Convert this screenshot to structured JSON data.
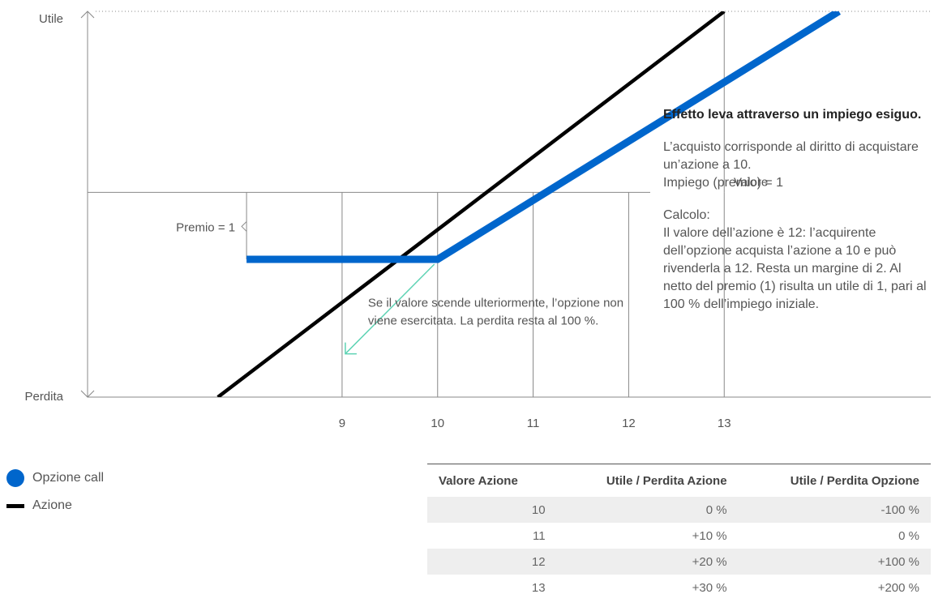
{
  "chart_data": {
    "type": "line",
    "title": "",
    "y_top_label": "Utile",
    "y_bottom_label": "Perdita",
    "x_axis_label": "Valore",
    "x_ticks": [
      "9",
      "10",
      "11",
      "12",
      "13"
    ],
    "xlim": [
      6.2,
      14.5
    ],
    "ylim": [
      -2.6,
      2.3
    ],
    "grid": "vertical lines at ticks",
    "series": [
      {
        "name": "Azione",
        "color": "#000000",
        "points": [
          [
            7.7,
            -2.6
          ],
          [
            13.0,
            2.3
          ]
        ]
      },
      {
        "name": "Opzione call",
        "color": "#0066cc",
        "points": [
          [
            8.0,
            -0.85
          ],
          [
            10.0,
            -0.85
          ],
          [
            14.2,
            2.3
          ]
        ]
      }
    ],
    "annotations": {
      "premium_label": "Premio = 1",
      "note": "Se il valore scende ulteriormente, l’opzione non viene esercitata. La perdita resta al 100 %."
    }
  },
  "side_text": {
    "heading": "Effetto leva attraverso un impiego esiguo.",
    "paragraph1": "L’acquisto corrisponde al diritto di acquistare un’azione a 10.\nImpiego (premio) = 1",
    "paragraph2": "Calcolo:\nIl valore dell’azione è 12: l’acquirente dell’opzione acquista l’azione a 10 e può rivenderla a 12. Resta un margine di 2. Al netto del premio (1) risulta un utile di 1, pari al 100 % dell’impiego iniziale."
  },
  "legend": [
    {
      "label": "Opzione call",
      "color": "#0066cc",
      "shape": "circle"
    },
    {
      "label": "Azione",
      "color": "#000000",
      "shape": "bar"
    }
  ],
  "table": {
    "headers": [
      "Valore Azione",
      "Utile / Perdita Azione",
      "Utile / Perdita Opzione"
    ],
    "rows": [
      [
        "10",
        "0 %",
        "-100 %"
      ],
      [
        "11",
        "+10 %",
        "0 %"
      ],
      [
        "12",
        "+20 %",
        "+100 %"
      ],
      [
        "13",
        "+30 %",
        "+200 %"
      ]
    ]
  }
}
